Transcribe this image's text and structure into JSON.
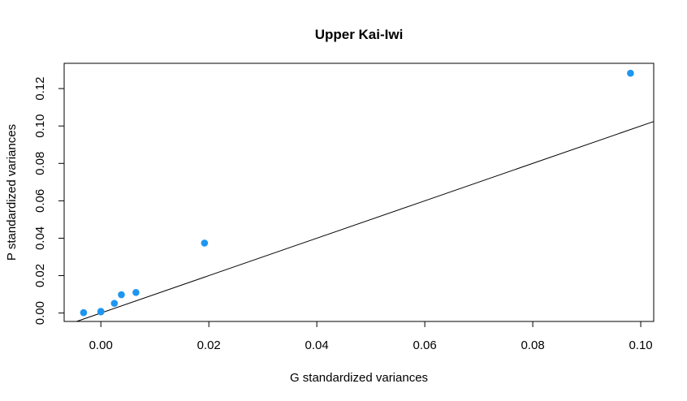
{
  "chart_data": {
    "type": "scatter",
    "title": "Upper Kai-Iwi",
    "xlabel": "G standardized variances",
    "ylabel": "P standardized variances",
    "xlim": [
      -0.0068,
      0.1024
    ],
    "ylim": [
      -0.0045,
      0.1335
    ],
    "x_ticks": [
      0.0,
      0.02,
      0.04,
      0.06,
      0.08,
      0.1
    ],
    "x_tick_labels": [
      "0.00",
      "0.02",
      "0.04",
      "0.06",
      "0.08",
      "0.10"
    ],
    "y_ticks": [
      0.0,
      0.02,
      0.04,
      0.06,
      0.08,
      0.1,
      0.12
    ],
    "y_tick_labels": [
      "0.00",
      "0.02",
      "0.04",
      "0.06",
      "0.08",
      "0.10",
      "0.12"
    ],
    "grid": false,
    "point_color": "#1e96f0",
    "line_color": "#000000",
    "series": [
      {
        "x": [
          -0.0032,
          0.0,
          0.0,
          0.0025,
          0.0038,
          0.0065,
          0.0192,
          0.0981
        ],
        "y": [
          0.0002,
          0.0006,
          0.0009,
          0.0052,
          0.0098,
          0.011,
          0.0374,
          0.1282
        ]
      }
    ],
    "reference_line": {
      "intercept": 0,
      "slope": 1
    }
  }
}
